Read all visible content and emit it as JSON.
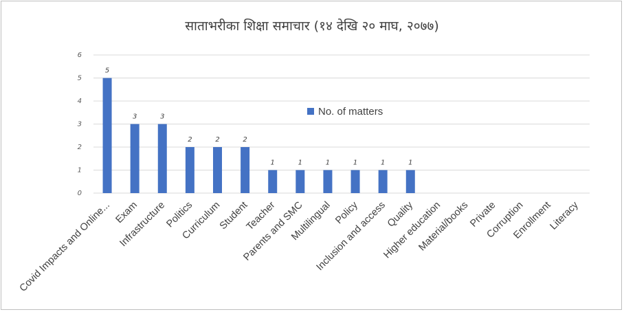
{
  "chart_data": {
    "type": "bar",
    "title": "साताभरीका शिक्षा समाचार (१४ देखि २० माघ, २०७७)",
    "categories": [
      "Covid Impacts and Online...",
      "Exam",
      "Infrastructure",
      "Politics",
      "Curriculum",
      "Student",
      "Teacher",
      "Parents and SMC",
      "Multilingual",
      "Policy",
      "Inclusion and access",
      "Quality",
      "Higher education",
      "Material/books",
      "Private",
      "Corruption",
      "Enrollment",
      "Literacy"
    ],
    "series": [
      {
        "name": "No. of matters",
        "values": [
          5,
          3,
          3,
          2,
          2,
          2,
          1,
          1,
          1,
          1,
          1,
          1,
          null,
          null,
          null,
          null,
          null,
          null
        ],
        "data_labels": [
          "5",
          "3",
          "3",
          "2",
          "2",
          "2",
          "1",
          "1",
          "1",
          "1",
          "1",
          "1",
          "",
          "",
          "",
          "",
          "",
          ""
        ]
      }
    ],
    "y_tick_labels": [
      "0",
      "1",
      "2",
      "3",
      "4",
      "5",
      "6"
    ],
    "ylim": [
      0,
      6
    ],
    "xlabel": "",
    "ylabel": "",
    "grid": true,
    "legend": "inside-center",
    "colors": {
      "bar": "#4472c4",
      "grid": "#d9d9d9",
      "text": "#404040"
    }
  }
}
